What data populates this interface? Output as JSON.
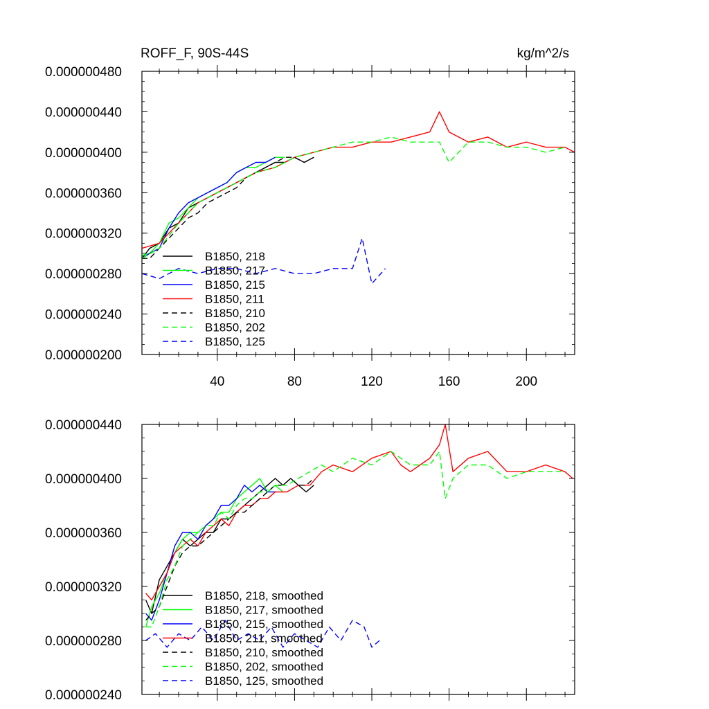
{
  "chart_data": [
    {
      "type": "line",
      "title_left": "ROFF_F, 90S-44S",
      "title_right": "kg/m^2/s",
      "xlim": [
        1,
        225
      ],
      "ylim": [
        2e-07,
        4.8e-07
      ],
      "yticks": [
        {
          "v": 4.8e-07,
          "label": "0.000000480"
        },
        {
          "v": 4.4e-07,
          "label": "0.000000440"
        },
        {
          "v": 4e-07,
          "label": "0.000000400"
        },
        {
          "v": 3.6e-07,
          "label": "0.000000360"
        },
        {
          "v": 3.2e-07,
          "label": "0.000000320"
        },
        {
          "v": 2.8e-07,
          "label": "0.000000280"
        },
        {
          "v": 2.4e-07,
          "label": "0.000000240"
        },
        {
          "v": 2e-07,
          "label": "0.000000200"
        }
      ],
      "xticks": [
        {
          "v": 40,
          "label": "40"
        },
        {
          "v": 80,
          "label": "80"
        },
        {
          "v": 120,
          "label": "120"
        },
        {
          "v": 160,
          "label": "160"
        },
        {
          "v": 200,
          "label": "200"
        }
      ],
      "series": [
        {
          "name": "B1850, 218",
          "color": "#000000",
          "dash": "solid",
          "x": [
            1,
            5,
            10,
            15,
            20,
            25,
            30,
            35,
            40,
            45,
            50,
            55,
            60,
            65,
            70,
            75,
            80,
            85,
            90
          ],
          "y": [
            2.95e-07,
            3.05e-07,
            3.1e-07,
            3.25e-07,
            3.3e-07,
            3.45e-07,
            3.5e-07,
            3.55e-07,
            3.6e-07,
            3.65e-07,
            3.7e-07,
            3.75e-07,
            3.8e-07,
            3.85e-07,
            3.9e-07,
            3.9e-07,
            3.95e-07,
            3.9e-07,
            3.95e-07
          ]
        },
        {
          "name": "B1850, 217",
          "color": "#00ff00",
          "dash": "solid",
          "x": [
            1,
            5,
            10,
            15,
            20,
            25,
            30,
            35,
            40,
            45,
            50,
            55,
            60,
            65,
            70,
            75
          ],
          "y": [
            2.98e-07,
            3e-07,
            3.1e-07,
            3.3e-07,
            3.35e-07,
            3.45e-07,
            3.55e-07,
            3.6e-07,
            3.65e-07,
            3.7e-07,
            3.8e-07,
            3.85e-07,
            3.85e-07,
            3.9e-07,
            3.95e-07,
            3.95e-07
          ]
        },
        {
          "name": "B1850, 215",
          "color": "#0000ff",
          "dash": "solid",
          "x": [
            1,
            5,
            10,
            15,
            20,
            25,
            30,
            35,
            40,
            45,
            50,
            55,
            60,
            65,
            70
          ],
          "y": [
            2.95e-07,
            3e-07,
            3.05e-07,
            3.25e-07,
            3.4e-07,
            3.5e-07,
            3.55e-07,
            3.6e-07,
            3.65e-07,
            3.7e-07,
            3.8e-07,
            3.85e-07,
            3.9e-07,
            3.9e-07,
            3.95e-07
          ]
        },
        {
          "name": "B1850, 211",
          "color": "#ff0000",
          "dash": "solid",
          "x": [
            1,
            10,
            20,
            30,
            40,
            50,
            60,
            70,
            80,
            90,
            100,
            110,
            120,
            130,
            140,
            150,
            155,
            160,
            170,
            180,
            190,
            200,
            210,
            220,
            225
          ],
          "y": [
            3.05e-07,
            3.1e-07,
            3.3e-07,
            3.5e-07,
            3.6e-07,
            3.7e-07,
            3.8e-07,
            3.85e-07,
            3.95e-07,
            4e-07,
            4.05e-07,
            4.05e-07,
            4.1e-07,
            4.1e-07,
            4.15e-07,
            4.2e-07,
            4.4e-07,
            4.2e-07,
            4.1e-07,
            4.15e-07,
            4.05e-07,
            4.1e-07,
            4.05e-07,
            4.05e-07,
            4e-07
          ]
        },
        {
          "name": "B1850, 210",
          "color": "#000000",
          "dash": "dashed",
          "x": [
            1,
            5,
            10,
            15,
            20,
            25,
            30,
            35,
            40,
            45,
            50,
            55,
            60,
            65,
            70,
            75,
            80,
            85,
            90
          ],
          "y": [
            2.95e-07,
            2.95e-07,
            3.05e-07,
            3.15e-07,
            3.25e-07,
            3.35e-07,
            3.4e-07,
            3.5e-07,
            3.55e-07,
            3.6e-07,
            3.65e-07,
            3.75e-07,
            3.8e-07,
            3.85e-07,
            3.9e-07,
            3.95e-07,
            3.95e-07,
            3.9e-07,
            3.95e-07
          ]
        },
        {
          "name": "B1850, 202",
          "color": "#00ff00",
          "dash": "dashed",
          "x": [
            1,
            10,
            20,
            30,
            40,
            50,
            60,
            70,
            80,
            90,
            100,
            110,
            120,
            130,
            140,
            150,
            155,
            160,
            170,
            180,
            190,
            200,
            210,
            220
          ],
          "y": [
            2.95e-07,
            3.05e-07,
            3.3e-07,
            3.5e-07,
            3.6e-07,
            3.7e-07,
            3.8e-07,
            3.85e-07,
            3.95e-07,
            4e-07,
            4.05e-07,
            4.1e-07,
            4.1e-07,
            4.15e-07,
            4.1e-07,
            4.1e-07,
            4.1e-07,
            3.9e-07,
            4.1e-07,
            4.1e-07,
            4.05e-07,
            4.05e-07,
            4e-07,
            4.05e-07
          ]
        },
        {
          "name": "B1850, 125",
          "color": "#0000ff",
          "dash": "dashed",
          "x": [
            1,
            10,
            20,
            30,
            40,
            50,
            60,
            70,
            80,
            90,
            100,
            110,
            115,
            120,
            127
          ],
          "y": [
            2.8e-07,
            2.75e-07,
            2.85e-07,
            2.8e-07,
            2.85e-07,
            2.85e-07,
            2.8e-07,
            2.85e-07,
            2.8e-07,
            2.8e-07,
            2.85e-07,
            2.85e-07,
            3.15e-07,
            2.7e-07,
            2.85e-07
          ]
        }
      ]
    },
    {
      "type": "line",
      "xlim": [
        1,
        225
      ],
      "ylim": [
        2.4e-07,
        4.4e-07
      ],
      "yticks": [
        {
          "v": 4.4e-07,
          "label": "0.000000440"
        },
        {
          "v": 4e-07,
          "label": "0.000000400"
        },
        {
          "v": 3.6e-07,
          "label": "0.000000360"
        },
        {
          "v": 3.2e-07,
          "label": "0.000000320"
        },
        {
          "v": 2.8e-07,
          "label": "0.000000280"
        },
        {
          "v": 2.4e-07,
          "label": "0.000000240"
        }
      ],
      "xticks": [],
      "series": [
        {
          "name": "B1850, 218, smoothed",
          "color": "#000000",
          "dash": "solid",
          "x": [
            3,
            6,
            10,
            14,
            18,
            22,
            26,
            30,
            34,
            38,
            42,
            46,
            50,
            54,
            58,
            62,
            66,
            70,
            74,
            78,
            82,
            86,
            90
          ],
          "y": [
            3.1e-07,
            3e-07,
            3.25e-07,
            3.35e-07,
            3.45e-07,
            3.55e-07,
            3.5e-07,
            3.55e-07,
            3.6e-07,
            3.6e-07,
            3.7e-07,
            3.7e-07,
            3.75e-07,
            3.8e-07,
            3.85e-07,
            3.9e-07,
            3.95e-07,
            4e-07,
            3.95e-07,
            4e-07,
            3.95e-07,
            3.9e-07,
            3.95e-07
          ]
        },
        {
          "name": "B1850, 217, smoothed",
          "color": "#00ff00",
          "dash": "solid",
          "x": [
            3,
            6,
            10,
            14,
            18,
            22,
            26,
            30,
            34,
            38,
            42,
            46,
            50,
            54,
            58,
            62,
            66,
            70,
            74
          ],
          "y": [
            2.9e-07,
            3.05e-07,
            3.15e-07,
            3.3e-07,
            3.45e-07,
            3.55e-07,
            3.6e-07,
            3.6e-07,
            3.65e-07,
            3.7e-07,
            3.75e-07,
            3.75e-07,
            3.85e-07,
            3.9e-07,
            3.95e-07,
            4e-07,
            3.9e-07,
            3.95e-07,
            3.9e-07
          ]
        },
        {
          "name": "B1850, 215, smoothed",
          "color": "#0000ff",
          "dash": "solid",
          "x": [
            3,
            6,
            10,
            14,
            18,
            22,
            26,
            30,
            34,
            38,
            42,
            46,
            50,
            54,
            58,
            62,
            66,
            70
          ],
          "y": [
            3e-07,
            2.95e-07,
            3.1e-07,
            3.3e-07,
            3.5e-07,
            3.6e-07,
            3.6e-07,
            3.55e-07,
            3.65e-07,
            3.7e-07,
            3.8e-07,
            3.8e-07,
            3.85e-07,
            3.95e-07,
            3.9e-07,
            3.95e-07,
            3.9e-07,
            3.9e-07
          ]
        },
        {
          "name": "B1850, 211, smoothed",
          "color": "#ff0000",
          "dash": "solid",
          "x": [
            3,
            6,
            10,
            14,
            18,
            22,
            26,
            30,
            34,
            38,
            42,
            46,
            50,
            54,
            58,
            62,
            66,
            70,
            76,
            82,
            88,
            94,
            100,
            110,
            120,
            130,
            135,
            140,
            145,
            150,
            155,
            158,
            162,
            170,
            180,
            190,
            200,
            210,
            220,
            224
          ],
          "y": [
            3.15e-07,
            3.1e-07,
            3.2e-07,
            3.3e-07,
            3.45e-07,
            3.5e-07,
            3.55e-07,
            3.5e-07,
            3.6e-07,
            3.65e-07,
            3.7e-07,
            3.65e-07,
            3.75e-07,
            3.8e-07,
            3.8e-07,
            3.85e-07,
            3.85e-07,
            3.9e-07,
            3.9e-07,
            3.95e-07,
            3.95e-07,
            4.05e-07,
            4.1e-07,
            4.05e-07,
            4.15e-07,
            4.2e-07,
            4.1e-07,
            4.05e-07,
            4.1e-07,
            4.15e-07,
            4.25e-07,
            4.4e-07,
            4.05e-07,
            4.15e-07,
            4.2e-07,
            4.05e-07,
            4.05e-07,
            4.1e-07,
            4.05e-07,
            4e-07
          ]
        },
        {
          "name": "B1850, 210, smoothed",
          "color": "#000000",
          "dash": "dashed",
          "x": [
            3,
            6,
            10,
            14,
            18,
            22,
            26,
            30,
            34,
            38,
            42,
            46,
            50,
            54,
            58,
            62,
            66,
            70,
            74,
            78,
            82,
            86,
            90
          ],
          "y": [
            2.95e-07,
            3e-07,
            3.05e-07,
            3.2e-07,
            3.35e-07,
            3.45e-07,
            3.5e-07,
            3.5e-07,
            3.55e-07,
            3.6e-07,
            3.65e-07,
            3.7e-07,
            3.75e-07,
            3.75e-07,
            3.8e-07,
            3.85e-07,
            3.9e-07,
            3.95e-07,
            3.95e-07,
            4e-07,
            3.95e-07,
            3.95e-07,
            4e-07
          ]
        },
        {
          "name": "B1850, 202, smoothed",
          "color": "#00ff00",
          "dash": "dashed",
          "x": [
            3,
            6,
            10,
            14,
            18,
            22,
            26,
            30,
            34,
            38,
            42,
            46,
            50,
            54,
            58,
            62,
            66,
            70,
            76,
            82,
            88,
            94,
            100,
            110,
            120,
            130,
            140,
            150,
            155,
            158,
            162,
            170,
            180,
            190,
            200,
            210,
            218
          ],
          "y": [
            2.9e-07,
            2.9e-07,
            3.05e-07,
            3.25e-07,
            3.35e-07,
            3.5e-07,
            3.55e-07,
            3.6e-07,
            3.65e-07,
            3.65e-07,
            3.75e-07,
            3.7e-07,
            3.8e-07,
            3.85e-07,
            3.85e-07,
            3.9e-07,
            3.9e-07,
            3.95e-07,
            3.95e-07,
            4e-07,
            4.05e-07,
            4.1e-07,
            4.05e-07,
            4.15e-07,
            4.1e-07,
            4.2e-07,
            4.1e-07,
            4.1e-07,
            4.2e-07,
            3.85e-07,
            4e-07,
            4.1e-07,
            4.1e-07,
            4e-07,
            4.05e-07,
            4.05e-07,
            4.05e-07
          ]
        },
        {
          "name": "B1850, 125, smoothed",
          "color": "#0000ff",
          "dash": "dashed",
          "x": [
            3,
            8,
            14,
            20,
            26,
            32,
            38,
            44,
            50,
            56,
            62,
            68,
            74,
            80,
            86,
            92,
            98,
            104,
            110,
            116,
            120,
            124
          ],
          "y": [
            2.8e-07,
            2.85e-07,
            2.75e-07,
            2.85e-07,
            2.8e-07,
            2.9e-07,
            2.8e-07,
            2.95e-07,
            2.8e-07,
            2.85e-07,
            2.8e-07,
            2.9e-07,
            2.75e-07,
            2.85e-07,
            2.8e-07,
            2.75e-07,
            2.9e-07,
            2.8e-07,
            2.95e-07,
            2.9e-07,
            2.75e-07,
            2.8e-07
          ]
        }
      ]
    }
  ]
}
